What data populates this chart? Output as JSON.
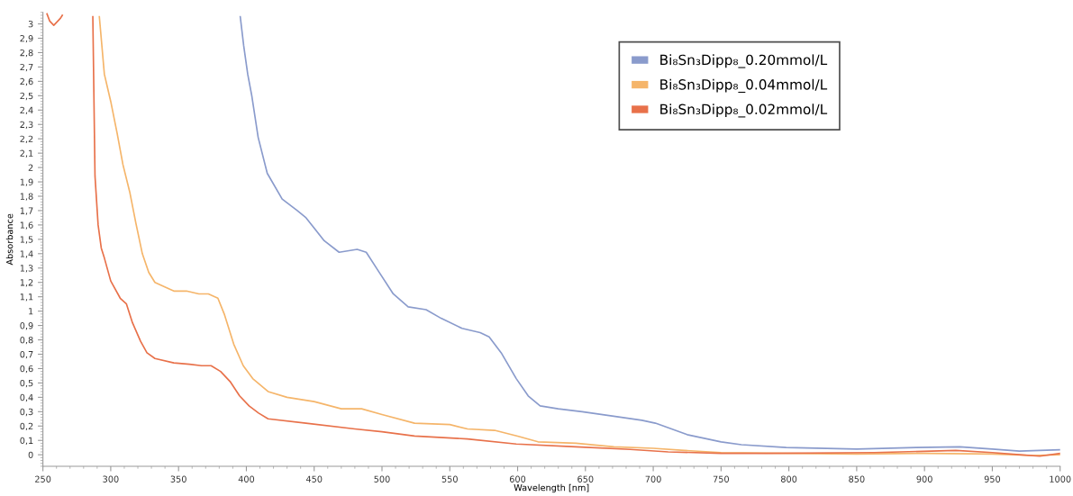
{
  "chart_data": {
    "type": "line",
    "xlabel": "Wavelength [nm]",
    "ylabel": "Absorbance",
    "xlim": [
      250,
      1000
    ],
    "ylim": [
      -0.08,
      3.08
    ],
    "xticks": [
      250,
      300,
      350,
      400,
      450,
      500,
      550,
      600,
      650,
      700,
      750,
      800,
      850,
      900,
      950,
      1000
    ],
    "yticks": [
      0,
      {
        "value": 0.1,
        "label": "0,1"
      },
      {
        "value": 0.2,
        "label": "0,2"
      },
      {
        "value": 0.3,
        "label": "0,3"
      },
      {
        "value": 0.4,
        "label": "0,4"
      },
      {
        "value": 0.5,
        "label": "0,5"
      },
      {
        "value": 0.6,
        "label": "0,6"
      },
      {
        "value": 0.7,
        "label": "0,7"
      },
      {
        "value": 0.8,
        "label": "0,8"
      },
      {
        "value": 0.9,
        "label": "0,9"
      },
      1,
      {
        "value": 1.1,
        "label": "1,1"
      },
      {
        "value": 1.2,
        "label": "1,2"
      },
      {
        "value": 1.3,
        "label": "1,3"
      },
      {
        "value": 1.4,
        "label": "1,4"
      },
      {
        "value": 1.5,
        "label": "1,5"
      },
      {
        "value": 1.6,
        "label": "1,6"
      },
      {
        "value": 1.7,
        "label": "1,7"
      },
      {
        "value": 1.8,
        "label": "1,8"
      },
      {
        "value": 1.9,
        "label": "1,9"
      },
      2,
      {
        "value": 2.1,
        "label": "2,1"
      },
      {
        "value": 2.2,
        "label": "2,2"
      },
      {
        "value": 2.3,
        "label": "2,3"
      },
      {
        "value": 2.4,
        "label": "2,4"
      },
      {
        "value": 2.5,
        "label": "2,5"
      },
      {
        "value": 2.6,
        "label": "2,6"
      },
      {
        "value": 2.7,
        "label": "2,7"
      },
      {
        "value": 2.8,
        "label": "2,8"
      },
      {
        "value": 2.9,
        "label": "2,9"
      },
      3
    ],
    "grid": false,
    "legend": "top right",
    "line_style": "solid",
    "marker": "none",
    "series": [
      {
        "name": "Bi₈Sn₃Dipp₈_0.20mmol/L",
        "color": "#8a9bcc",
        "x": [
          395.5,
          398,
          401,
          404,
          408.7,
          415.4,
          426.4,
          437.5,
          444,
          457.4,
          468.4,
          481.7,
          488.4,
          496.6,
          508.3,
          519.3,
          532.5,
          543.6,
          559,
          572.4,
          579,
          587.9,
          599,
          607.8,
          616.6,
          629.9,
          647.6,
          669.7,
          691.6,
          701.6,
          725,
          750,
          765,
          798,
          850,
          894,
          926,
          950,
          970,
          1000
        ],
        "values": [
          3.05,
          2.85,
          2.65,
          2.5,
          2.21,
          1.96,
          1.78,
          1.7,
          1.65,
          1.49,
          1.41,
          1.43,
          1.41,
          1.29,
          1.12,
          1.03,
          1.01,
          0.95,
          0.88,
          0.85,
          0.82,
          0.71,
          0.53,
          0.41,
          0.34,
          0.32,
          0.3,
          0.27,
          0.24,
          0.22,
          0.14,
          0.09,
          0.07,
          0.05,
          0.04,
          0.05,
          0.055,
          0.04,
          0.025,
          0.035
        ]
      },
      {
        "name": "Bi₈Sn₃Dipp₈_0.04mmol/L",
        "color": "#f5b56a",
        "x": [
          291.6,
          295.3,
          300,
          304.7,
          309,
          314,
          318.6,
          323.3,
          328,
          332.6,
          339.5,
          346.5,
          355.8,
          365,
          372,
          379,
          383.7,
          390.7,
          397.7,
          404.7,
          416,
          430,
          450,
          470,
          485,
          500,
          524,
          550,
          563,
          583,
          600,
          615,
          643,
          671,
          700,
          723,
          750,
          800,
          850,
          900,
          950,
          980,
          1000
        ],
        "values": [
          3.05,
          2.65,
          2.46,
          2.24,
          2.02,
          1.83,
          1.61,
          1.4,
          1.27,
          1.2,
          1.17,
          1.14,
          1.14,
          1.12,
          1.12,
          1.09,
          0.98,
          0.77,
          0.62,
          0.53,
          0.44,
          0.4,
          0.37,
          0.32,
          0.32,
          0.28,
          0.22,
          0.21,
          0.18,
          0.17,
          0.13,
          0.09,
          0.08,
          0.055,
          0.045,
          0.03,
          0.015,
          0.01,
          0.005,
          0.01,
          0.005,
          -0.005,
          0.0
        ]
      },
      {
        "name": "Bi₈Sn₃Dipp₈_0.02mmol/L",
        "color": "#e8714a",
        "x": [
          253,
          255,
          258,
          261,
          263,
          264.3,
          275,
          286.8,
          288.4,
          290.7,
          293,
          295.3,
          300,
          307,
          311.6,
          316,
          322,
          326.7,
          332.6,
          346.5,
          358,
          367,
          374,
          381,
          388,
          395,
          402,
          409,
          416,
          444,
          480,
          500,
          524,
          563,
          599,
          643,
          683,
          711,
          750,
          783,
          863,
          923,
          950,
          970,
          985,
          1000
        ],
        "values": [
          3.07,
          3.02,
          2.99,
          3.02,
          3.04,
          3.06,
          null,
          3.05,
          1.94,
          1.6,
          1.44,
          1.37,
          1.21,
          1.09,
          1.05,
          0.92,
          0.79,
          0.71,
          0.67,
          0.64,
          0.63,
          0.62,
          0.62,
          0.58,
          0.51,
          0.41,
          0.34,
          0.29,
          0.25,
          0.22,
          0.18,
          0.16,
          0.13,
          0.11,
          0.075,
          0.055,
          0.037,
          0.02,
          0.01,
          0.01,
          0.015,
          0.03,
          0.015,
          0.0,
          -0.01,
          0.01
        ]
      }
    ]
  }
}
